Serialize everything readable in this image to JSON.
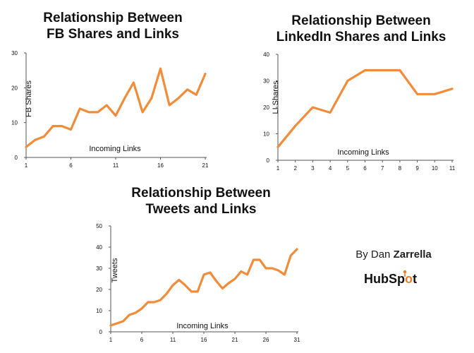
{
  "chart_data": [
    {
      "id": "fb",
      "type": "line",
      "title": "Relationship Between",
      "title_bold": "FB Shares",
      "title_rest": "and Links",
      "xlabel": "Incoming Links",
      "ylabel": "FB Shares",
      "x": [
        1,
        2,
        3,
        4,
        5,
        6,
        7,
        8,
        9,
        10,
        11,
        12,
        13,
        14,
        15,
        16,
        17,
        18,
        19,
        20,
        21
      ],
      "values": [
        3,
        5,
        6,
        9,
        9,
        8,
        14,
        13,
        13,
        15,
        12,
        17,
        21.5,
        13,
        17,
        25.5,
        15,
        17,
        19.5,
        18,
        24
      ],
      "xticks": [
        1,
        6,
        11,
        16,
        21
      ],
      "yticks": [
        0,
        10,
        20,
        30
      ],
      "xlim": [
        1,
        21
      ],
      "ylim": [
        0,
        30
      ],
      "color": "#f08c3a"
    },
    {
      "id": "li",
      "type": "line",
      "title": "Relationship Between",
      "title_bold": "LinkedIn Shares",
      "title_rest": "and Links",
      "xlabel": "Incoming Links",
      "ylabel": "LI Shares",
      "x": [
        1,
        2,
        3,
        4,
        5,
        6,
        7,
        8,
        9,
        10,
        11
      ],
      "values": [
        5,
        13,
        20,
        18,
        30,
        34,
        34,
        34,
        25,
        25,
        27
      ],
      "xticks": [
        1,
        2,
        3,
        4,
        5,
        6,
        7,
        8,
        9,
        10,
        11
      ],
      "yticks": [
        0,
        10,
        20,
        30,
        40
      ],
      "xlim": [
        1,
        11
      ],
      "ylim": [
        0,
        40
      ],
      "color": "#f08c3a"
    },
    {
      "id": "tw",
      "type": "line",
      "title": "Relationship Between",
      "title_bold": "Tweets",
      "title_rest": "and Links",
      "xlabel": "Incoming Links",
      "ylabel": "Tweets",
      "x": [
        1,
        2,
        3,
        4,
        5,
        6,
        7,
        8,
        9,
        10,
        11,
        12,
        13,
        14,
        15,
        16,
        17,
        18,
        19,
        20,
        21,
        22,
        23,
        24,
        25,
        26,
        27,
        28,
        29,
        30,
        31
      ],
      "values": [
        3,
        4,
        5,
        8,
        9,
        11,
        14,
        14,
        15,
        18,
        22,
        24.5,
        22,
        19,
        19,
        27,
        28,
        24,
        20.5,
        23,
        25,
        28.5,
        27,
        34,
        34,
        30,
        30,
        29,
        27,
        36,
        39
      ],
      "xticks": [
        1,
        6,
        11,
        16,
        21,
        26,
        31
      ],
      "yticks": [
        0,
        10,
        20,
        30,
        40,
        50
      ],
      "xlim": [
        1,
        31
      ],
      "ylim": [
        0,
        50
      ],
      "color": "#f08c3a"
    }
  ],
  "credit": {
    "prefix": "By Dan",
    "name": "Zarrella"
  },
  "brand": {
    "hub": "HubSp",
    "spot": "o",
    "end": "t",
    "hub_color": "#4a5563",
    "accent_color": "#f07c2a"
  }
}
